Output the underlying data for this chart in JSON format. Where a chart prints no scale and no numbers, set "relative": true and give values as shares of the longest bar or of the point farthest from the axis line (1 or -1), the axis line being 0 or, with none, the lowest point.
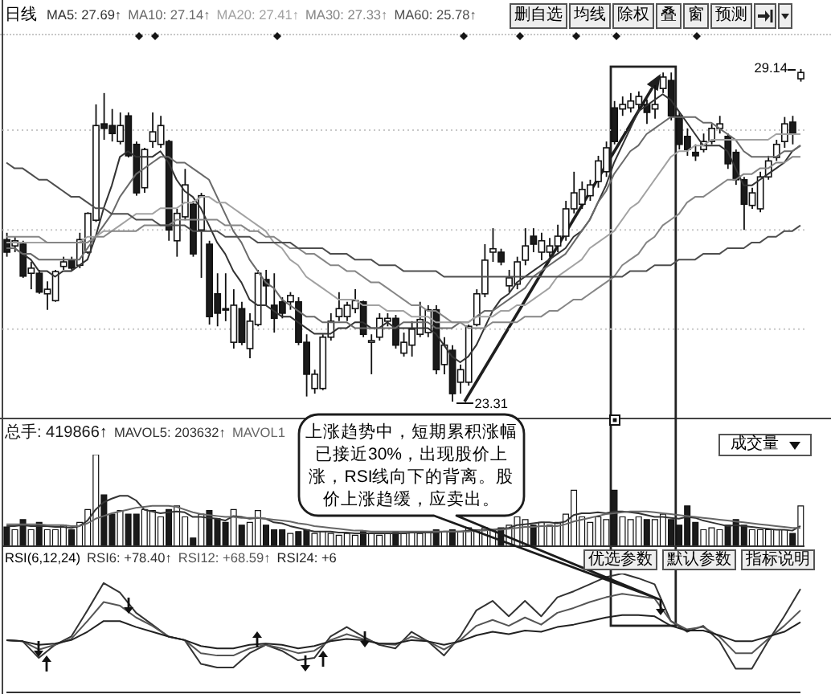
{
  "chart_data": [
    {
      "type": "candlestick",
      "title": "日线",
      "legend": "top left",
      "tick_labels": false,
      "grid": "y",
      "marker": "none",
      "line_style": "solid",
      "categories": [
        null,
        null,
        null,
        null,
        null,
        null,
        null,
        null,
        null,
        null,
        null,
        null,
        null,
        null,
        null,
        null,
        null,
        null,
        null,
        null,
        null,
        null,
        null,
        null,
        null,
        null,
        null,
        null,
        null,
        null,
        null,
        null,
        null,
        null,
        null,
        null,
        null,
        null,
        null,
        null,
        null,
        null,
        null,
        null,
        null,
        null,
        null,
        null,
        null,
        null,
        null,
        null,
        null,
        null,
        null,
        null,
        null,
        null,
        null,
        null,
        null,
        null,
        null,
        null,
        null,
        null,
        null,
        null,
        null,
        null,
        null,
        null,
        null,
        null,
        null,
        null,
        null,
        null,
        null,
        null,
        null,
        null,
        null,
        null,
        null,
        null,
        null,
        null,
        null,
        null,
        null,
        null,
        null,
        null,
        null,
        null,
        null,
        null,
        null
      ],
      "ohlc": [
        [
          26.15,
          26.27,
          25.85,
          25.93
        ],
        [
          26.04,
          26.21,
          25.93,
          26.13
        ],
        [
          26.07,
          26.13,
          25.48,
          25.51
        ],
        [
          25.56,
          25.76,
          25.28,
          25.65
        ],
        [
          25.56,
          25.62,
          25.2,
          25.23
        ],
        [
          25.2,
          25.42,
          24.92,
          25.28
        ],
        [
          25.08,
          25.62,
          25.06,
          25.59
        ],
        [
          25.68,
          25.85,
          25.62,
          25.76
        ],
        [
          25.79,
          25.85,
          25.62,
          25.65
        ],
        [
          25.7,
          26.27,
          25.65,
          26.15
        ],
        [
          25.93,
          26.63,
          25.9,
          26.61
        ],
        [
          26.49,
          28.52,
          26.46,
          28.15
        ],
        [
          28.18,
          28.72,
          27.9,
          28.1
        ],
        [
          28.15,
          28.44,
          27.87,
          28.01
        ],
        [
          27.87,
          28.38,
          27.82,
          28.15
        ],
        [
          28.32,
          28.38,
          27.59,
          27.62
        ],
        [
          27.82,
          27.87,
          26.92,
          26.97
        ],
        [
          27.06,
          27.76,
          26.97,
          27.73
        ],
        [
          27.87,
          28.38,
          27.76,
          28.04
        ],
        [
          27.82,
          28.32,
          27.76,
          28.15
        ],
        [
          27.87,
          27.9,
          26.13,
          26.32
        ],
        [
          26.13,
          26.69,
          25.85,
          26.61
        ],
        [
          26.55,
          27.39,
          26.49,
          27.11
        ],
        [
          26.77,
          26.83,
          25.85,
          25.9
        ],
        [
          26.32,
          26.97,
          25.48,
          26.92
        ],
        [
          26.07,
          26.13,
          24.66,
          24.8
        ],
        [
          25.2,
          25.56,
          24.63,
          24.86
        ],
        [
          24.94,
          25.56,
          24.72,
          24.92
        ],
        [
          24.35,
          25.28,
          24.24,
          25.0
        ],
        [
          24.94,
          25.06,
          24.3,
          24.35
        ],
        [
          24.24,
          24.86,
          24.07,
          24.72
        ],
        [
          24.66,
          25.62,
          24.63,
          25.56
        ],
        [
          25.45,
          25.62,
          25.0,
          25.34
        ],
        [
          25.0,
          25.56,
          24.52,
          24.77
        ],
        [
          25.06,
          25.14,
          24.77,
          24.86
        ],
        [
          25.06,
          25.23,
          24.92,
          25.17
        ],
        [
          25.06,
          25.14,
          24.3,
          24.35
        ],
        [
          24.35,
          24.49,
          23.4,
          23.79
        ],
        [
          23.54,
          23.87,
          23.45,
          23.79
        ],
        [
          23.54,
          24.49,
          23.51,
          24.44
        ],
        [
          24.44,
          24.86,
          24.38,
          24.72
        ],
        [
          24.8,
          25.23,
          24.72,
          24.94
        ],
        [
          24.8,
          25.06,
          24.72,
          25.0
        ],
        [
          24.94,
          25.28,
          24.86,
          25.08
        ],
        [
          25.06,
          25.08,
          24.44,
          24.49
        ],
        [
          24.35,
          24.49,
          23.79,
          24.38
        ],
        [
          24.44,
          24.86,
          24.38,
          24.77
        ],
        [
          24.72,
          24.86,
          24.63,
          24.77
        ],
        [
          24.77,
          24.83,
          24.24,
          24.3
        ],
        [
          24.16,
          24.52,
          24.1,
          24.35
        ],
        [
          24.3,
          24.72,
          24.1,
          24.58
        ],
        [
          24.49,
          25.06,
          24.44,
          24.75
        ],
        [
          24.52,
          25.0,
          24.44,
          24.92
        ],
        [
          24.92,
          25.0,
          23.79,
          23.87
        ],
        [
          23.96,
          24.44,
          23.79,
          24.3
        ],
        [
          24.21,
          24.3,
          23.31,
          23.45
        ],
        [
          23.65,
          23.96,
          23.45,
          23.87
        ],
        [
          23.65,
          24.66,
          23.59,
          24.63
        ],
        [
          24.66,
          25.28,
          24.63,
          25.2
        ],
        [
          25.2,
          26.07,
          25.14,
          25.79
        ],
        [
          25.93,
          26.35,
          25.76,
          25.99
        ],
        [
          25.93,
          25.99,
          25.7,
          25.76
        ],
        [
          25.34,
          25.62,
          25.23,
          25.48
        ],
        [
          25.37,
          25.85,
          25.28,
          25.76
        ],
        [
          25.79,
          26.35,
          25.7,
          26.04
        ],
        [
          26.21,
          26.35,
          25.93,
          26.07
        ],
        [
          25.93,
          26.27,
          25.79,
          26.13
        ],
        [
          25.93,
          26.18,
          25.85,
          26.04
        ],
        [
          26.04,
          26.41,
          25.93,
          26.21
        ],
        [
          26.21,
          26.83,
          26.13,
          26.69
        ],
        [
          26.69,
          27.34,
          26.61,
          26.97
        ],
        [
          26.77,
          27.17,
          26.69,
          27.03
        ],
        [
          26.92,
          27.2,
          26.83,
          27.11
        ],
        [
          27.17,
          27.62,
          27.06,
          27.53
        ],
        [
          27.34,
          27.87,
          27.25,
          27.76
        ],
        [
          28.46,
          28.58,
          27.82,
          27.87
        ],
        [
          28.44,
          28.66,
          28.32,
          28.52
        ],
        [
          28.46,
          28.72,
          28.38,
          28.58
        ],
        [
          28.52,
          28.75,
          28.44,
          28.66
        ],
        [
          28.52,
          28.61,
          28.18,
          28.38
        ],
        [
          28.44,
          28.86,
          28.27,
          28.52
        ],
        [
          28.8,
          29.08,
          28.72,
          29.0
        ],
        [
          28.94,
          29.08,
          28.24,
          28.32
        ],
        [
          28.32,
          28.38,
          27.73,
          27.82
        ],
        [
          27.96,
          28.1,
          27.62,
          27.73
        ],
        [
          27.68,
          27.82,
          27.53,
          27.62
        ],
        [
          27.73,
          28.01,
          27.68,
          27.87
        ],
        [
          27.87,
          28.18,
          27.82,
          28.1
        ],
        [
          28.1,
          28.32,
          28.01,
          28.18
        ],
        [
          27.96,
          28.01,
          27.39,
          27.48
        ],
        [
          27.68,
          27.73,
          27.11,
          27.2
        ],
        [
          27.2,
          27.25,
          26.32,
          26.77
        ],
        [
          26.75,
          27.06,
          26.69,
          26.97
        ],
        [
          26.69,
          27.34,
          26.63,
          27.25
        ],
        [
          27.25,
          27.62,
          27.2,
          27.53
        ],
        [
          27.59,
          27.9,
          27.53,
          27.82
        ],
        [
          27.87,
          28.3,
          27.76,
          28.18
        ],
        [
          28.21,
          28.32,
          27.82,
          28.01
        ],
        [
          28.97,
          29.14,
          28.92,
          29.08
        ]
      ],
      "colors": [
        "#1a1a1a",
        "#ffffff",
        "#1a1a1a",
        "#ffffff",
        "#1a1a1a",
        "#ffffff",
        "#ffffff",
        "#ffffff",
        "#1a1a1a",
        "#ffffff",
        "#ffffff",
        "#ffffff",
        "#1a1a1a",
        "#1a1a1a",
        "#ffffff",
        "#1a1a1a",
        "#1a1a1a",
        "#ffffff",
        "#ffffff",
        "#ffffff",
        "#1a1a1a",
        "#ffffff",
        "#ffffff",
        "#1a1a1a",
        "#ffffff",
        "#1a1a1a",
        "#1a1a1a",
        "#1a1a1a",
        "#ffffff",
        "#1a1a1a",
        "#ffffff",
        "#ffffff",
        "#1a1a1a",
        "#1a1a1a",
        "#1a1a1a",
        "#ffffff",
        "#1a1a1a",
        "#1a1a1a",
        "#ffffff",
        "#ffffff",
        "#ffffff",
        "#ffffff",
        "#ffffff",
        "#ffffff",
        "#1a1a1a",
        "#ffffff",
        "#ffffff",
        "#ffffff",
        "#1a1a1a",
        "#ffffff",
        "#ffffff",
        "#ffffff",
        "#ffffff",
        "#1a1a1a",
        "#ffffff",
        "#1a1a1a",
        "#ffffff",
        "#ffffff",
        "#ffffff",
        "#ffffff",
        "#ffffff",
        "#1a1a1a",
        "#ffffff",
        "#ffffff",
        "#ffffff",
        "#1a1a1a",
        "#ffffff",
        "#ffffff",
        "#ffffff",
        "#ffffff",
        "#ffffff",
        "#ffffff",
        "#ffffff",
        "#ffffff",
        "#ffffff",
        "#1a1a1a",
        "#ffffff",
        "#ffffff",
        "#ffffff",
        "#1a1a1a",
        "#ffffff",
        "#ffffff",
        "#1a1a1a",
        "#1a1a1a",
        "#1a1a1a",
        "#1a1a1a",
        "#ffffff",
        "#ffffff",
        "#ffffff",
        "#1a1a1a",
        "#1a1a1a",
        "#1a1a1a",
        "#ffffff",
        "#ffffff",
        "#ffffff",
        "#ffffff",
        "#ffffff",
        "#1a1a1a",
        "#ffffff"
      ],
      "series": [
        {
          "type": "line",
          "name": "MA5: 27.69↑",
          "color": "#333333",
          "values": [
            26.0,
            26.0,
            25.9,
            25.8,
            25.6,
            25.6,
            25.5,
            25.6,
            25.6,
            25.7,
            25.8,
            26.2,
            26.7,
            27.1,
            27.6,
            27.7,
            27.6,
            27.6,
            27.6,
            27.7,
            27.5,
            27.2,
            27.0,
            26.9,
            26.7,
            26.4,
            26.1,
            25.9,
            25.6,
            25.4,
            25.1,
            25.0,
            25.0,
            24.9,
            24.8,
            24.8,
            24.7,
            24.6,
            24.5,
            24.5,
            24.5,
            24.6,
            24.6,
            24.7,
            24.7,
            24.6,
            24.6,
            24.7,
            24.6,
            24.6,
            24.6,
            24.6,
            24.6,
            24.5,
            24.3,
            24.1,
            24.0,
            24.1,
            24.3,
            24.6,
            24.9,
            25.1,
            25.2,
            25.4,
            25.5,
            25.6,
            25.7,
            25.8,
            25.9,
            26.0,
            26.2,
            26.3,
            26.5,
            26.8,
            27.1,
            27.5,
            27.8,
            28.1,
            28.4,
            28.5,
            28.6,
            28.7,
            28.6,
            28.4,
            28.2,
            28.0,
            27.8,
            27.8,
            27.8,
            27.7,
            27.4,
            27.1,
            27.1,
            27.2,
            27.3,
            27.4,
            27.5,
            27.7,
            27.8
          ]
        },
        {
          "type": "line",
          "name": "MA10: 27.14↑",
          "color": "#6a6a6a",
          "values": [
            26.0,
            26.0,
            25.9,
            25.9,
            25.8,
            25.8,
            25.8,
            25.8,
            25.8,
            25.8,
            26.0,
            26.2,
            26.4,
            26.6,
            26.9,
            27.1,
            27.3,
            27.4,
            27.5,
            27.6,
            27.6,
            27.5,
            27.5,
            27.4,
            27.3,
            27.2,
            26.9,
            26.6,
            26.3,
            26.1,
            25.8,
            25.6,
            25.4,
            25.3,
            25.1,
            25.0,
            24.9,
            24.8,
            24.8,
            24.7,
            24.7,
            24.7,
            24.7,
            24.6,
            24.6,
            24.6,
            24.6,
            24.6,
            24.6,
            24.7,
            24.7,
            24.7,
            24.7,
            24.6,
            24.6,
            24.6,
            24.7,
            24.7,
            24.8,
            24.9,
            24.9,
            25.0,
            25.1,
            25.2,
            25.3,
            25.5,
            25.6,
            25.7,
            25.8,
            25.9,
            26.1,
            26.3,
            26.5,
            26.8,
            27.0,
            27.3,
            27.5,
            27.7,
            27.8,
            28.0,
            28.1,
            28.2,
            28.3,
            28.3,
            28.3,
            28.3,
            28.2,
            28.2,
            28.1,
            28.0,
            27.9,
            27.7,
            27.6,
            27.6,
            27.6,
            27.6,
            27.7,
            27.7,
            27.8
          ]
        },
        {
          "type": "line",
          "name": "MA20: 27.41↑",
          "color": "#a2a2a2",
          "values": [
            26.1,
            26.1,
            26.1,
            26.1,
            26.1,
            26.1,
            26.1,
            26.1,
            26.1,
            26.1,
            26.2,
            26.2,
            26.3,
            26.3,
            26.4,
            26.5,
            26.6,
            26.6,
            26.6,
            26.7,
            26.7,
            26.7,
            26.8,
            26.8,
            26.9,
            26.9,
            26.8,
            26.8,
            26.7,
            26.6,
            26.5,
            26.4,
            26.3,
            26.1,
            26.0,
            25.8,
            25.7,
            25.5,
            25.4,
            25.3,
            25.2,
            25.1,
            25.1,
            25.1,
            25.0,
            25.0,
            25.0,
            24.9,
            24.9,
            24.9,
            24.8,
            24.8,
            24.8,
            24.7,
            24.7,
            24.7,
            24.7,
            24.7,
            24.8,
            24.8,
            24.8,
            24.9,
            24.9,
            25.0,
            25.0,
            25.1,
            25.2,
            25.3,
            25.5,
            25.6,
            25.7,
            25.8,
            26.0,
            26.1,
            26.2,
            26.3,
            26.5,
            26.7,
            26.8,
            27.0,
            27.2,
            27.4,
            27.6,
            27.7,
            27.7,
            27.8,
            27.8,
            27.9,
            27.9,
            27.9,
            27.9,
            27.9,
            27.9,
            27.9,
            27.9,
            28.0,
            28.0,
            28.0,
            28.0
          ]
        },
        {
          "type": "line",
          "name": "MA30: 27.33↑",
          "color": "#868686",
          "values": [
            26.2,
            26.2,
            26.2,
            26.2,
            26.2,
            26.1,
            26.1,
            26.1,
            26.1,
            26.1,
            26.1,
            26.2,
            26.2,
            26.3,
            26.3,
            26.3,
            26.3,
            26.4,
            26.4,
            26.4,
            26.4,
            26.5,
            26.5,
            26.5,
            26.5,
            26.5,
            26.5,
            26.4,
            26.4,
            26.4,
            26.3,
            26.3,
            26.2,
            26.2,
            26.1,
            26.0,
            26.0,
            25.9,
            25.9,
            25.8,
            25.7,
            25.7,
            25.6,
            25.6,
            25.5,
            25.4,
            25.4,
            25.3,
            25.2,
            25.1,
            25.0,
            25.0,
            24.9,
            24.9,
            24.8,
            24.7,
            24.7,
            24.6,
            24.6,
            24.6,
            24.7,
            24.7,
            24.7,
            24.7,
            24.8,
            24.8,
            24.8,
            24.9,
            24.9,
            25.0,
            25.1,
            25.1,
            25.2,
            25.3,
            25.4,
            25.5,
            25.7,
            25.8,
            25.9,
            26.1,
            26.2,
            26.4,
            26.5,
            26.6,
            26.8,
            26.9,
            26.9,
            27.0,
            27.1,
            27.2,
            27.2,
            27.3,
            27.3,
            27.4,
            27.4,
            27.5,
            27.5,
            27.6,
            27.6
          ]
        },
        {
          "type": "line",
          "name": "MA60: 25.78↑",
          "color": "#4e4e4e",
          "values": [
            27.5,
            27.4,
            27.4,
            27.3,
            27.2,
            27.2,
            27.1,
            27.0,
            26.9,
            26.9,
            26.8,
            26.7,
            26.7,
            26.6,
            26.6,
            26.6,
            26.5,
            26.5,
            26.5,
            26.4,
            26.4,
            26.4,
            26.4,
            26.3,
            26.3,
            26.3,
            26.3,
            26.2,
            26.2,
            26.2,
            26.2,
            26.1,
            26.1,
            26.1,
            26.1,
            26.1,
            26.0,
            26.0,
            26.0,
            26.0,
            25.9,
            25.9,
            25.9,
            25.8,
            25.8,
            25.8,
            25.7,
            25.7,
            25.7,
            25.6,
            25.6,
            25.6,
            25.6,
            25.6,
            25.5,
            25.5,
            25.5,
            25.5,
            25.5,
            25.5,
            25.5,
            25.5,
            25.5,
            25.5,
            25.5,
            25.5,
            25.5,
            25.5,
            25.5,
            25.5,
            25.5,
            25.5,
            25.5,
            25.5,
            25.5,
            25.5,
            25.5,
            25.6,
            25.6,
            25.6,
            25.7,
            25.7,
            25.7,
            25.8,
            25.8,
            25.8,
            25.9,
            25.9,
            25.9,
            26.0,
            26.0,
            26.0,
            26.1,
            26.1,
            26.2,
            26.2,
            26.3,
            26.3,
            26.4
          ]
        }
      ],
      "yticks": [
        {
          "value": 28.07,
          "label": null
        },
        {
          "value": 26.32,
          "label": null
        },
        {
          "value": 24.58,
          "label": null
        }
      ],
      "annotations": [
        "29.14",
        "23.31",
        "删自选",
        "均线",
        "除权",
        "叠",
        "窗",
        "预测"
      ]
    },
    {
      "type": "bar",
      "relative": true,
      "legend": "top left",
      "tick_labels": false,
      "marker": "none",
      "line_style": "solid",
      "categories": [
        null,
        null,
        null,
        null,
        null,
        null,
        null,
        null,
        null,
        null,
        null,
        null,
        null,
        null,
        null,
        null,
        null,
        null,
        null,
        null,
        null,
        null,
        null,
        null,
        null,
        null,
        null,
        null,
        null,
        null,
        null,
        null,
        null,
        null,
        null,
        null,
        null,
        null,
        null,
        null,
        null,
        null,
        null,
        null,
        null,
        null,
        null,
        null,
        null,
        null,
        null,
        null,
        null,
        null,
        null,
        null,
        null,
        null,
        null,
        null,
        null,
        null,
        null,
        null,
        null,
        null,
        null,
        null,
        null,
        null,
        null,
        null,
        null,
        null,
        null,
        null,
        null,
        null,
        null,
        null,
        null,
        null,
        null,
        null,
        null,
        null,
        null,
        null,
        null,
        null,
        null,
        null,
        null,
        null,
        null,
        null,
        null,
        null,
        null
      ],
      "series": [
        {
          "name": "总手: 419866↑",
          "color": "#1a1a1a",
          "values": [
            0.21,
            0.18,
            0.29,
            0.18,
            0.26,
            0.18,
            0.18,
            0.23,
            0.18,
            0.26,
            0.4,
            1,
            0.56,
            0.35,
            0.39,
            0.35,
            0.35,
            0.4,
            0.39,
            0.32,
            0.4,
            0.44,
            0.32,
            0.09,
            0.35,
            0.39,
            0.3,
            0.26,
            0.4,
            0.23,
            0.26,
            0.39,
            0.23,
            0.18,
            0.18,
            0.14,
            0.16,
            0.18,
            0.14,
            0.16,
            0.14,
            0.12,
            0.14,
            0.12,
            0.16,
            0.14,
            0.12,
            0.14,
            0.16,
            0.14,
            0.16,
            0.14,
            0.16,
            0.18,
            0.16,
            0.18,
            0.16,
            0.2,
            0.18,
            0.2,
            0.18,
            0.2,
            0.23,
            0.32,
            0.29,
            0.23,
            0.26,
            0.23,
            0.26,
            0.35,
            0.61,
            0.32,
            0.26,
            0.32,
            0.29,
            0.61,
            0.32,
            0.29,
            0.32,
            0.29,
            0.29,
            0.35,
            0.29,
            0.23,
            0.44,
            0.26,
            0.18,
            0.2,
            0.18,
            0.23,
            0.29,
            0.23,
            0.18,
            0.18,
            0.18,
            0.18,
            0.18,
            0.14,
            0.44
          ],
          "colors": [
            "#1a1a1a",
            "#ffffff",
            "#1a1a1a",
            "#ffffff",
            "#1a1a1a",
            "#ffffff",
            "#ffffff",
            "#ffffff",
            "#1a1a1a",
            "#ffffff",
            "#ffffff",
            "#ffffff",
            "#1a1a1a",
            "#1a1a1a",
            "#ffffff",
            "#1a1a1a",
            "#1a1a1a",
            "#ffffff",
            "#ffffff",
            "#ffffff",
            "#1a1a1a",
            "#ffffff",
            "#ffffff",
            "#1a1a1a",
            "#ffffff",
            "#1a1a1a",
            "#1a1a1a",
            "#1a1a1a",
            "#ffffff",
            "#1a1a1a",
            "#ffffff",
            "#ffffff",
            "#1a1a1a",
            "#1a1a1a",
            "#1a1a1a",
            "#ffffff",
            "#1a1a1a",
            "#1a1a1a",
            "#ffffff",
            "#ffffff",
            "#ffffff",
            "#ffffff",
            "#ffffff",
            "#ffffff",
            "#1a1a1a",
            "#ffffff",
            "#ffffff",
            "#ffffff",
            "#1a1a1a",
            "#ffffff",
            "#ffffff",
            "#ffffff",
            "#ffffff",
            "#1a1a1a",
            "#ffffff",
            "#1a1a1a",
            "#ffffff",
            "#ffffff",
            "#ffffff",
            "#ffffff",
            "#ffffff",
            "#1a1a1a",
            "#ffffff",
            "#ffffff",
            "#ffffff",
            "#1a1a1a",
            "#ffffff",
            "#ffffff",
            "#ffffff",
            "#ffffff",
            "#ffffff",
            "#ffffff",
            "#ffffff",
            "#ffffff",
            "#ffffff",
            "#1a1a1a",
            "#ffffff",
            "#ffffff",
            "#ffffff",
            "#1a1a1a",
            "#ffffff",
            "#ffffff",
            "#1a1a1a",
            "#1a1a1a",
            "#1a1a1a",
            "#1a1a1a",
            "#ffffff",
            "#ffffff",
            "#ffffff",
            "#1a1a1a",
            "#1a1a1a",
            "#1a1a1a",
            "#ffffff",
            "#ffffff",
            "#ffffff",
            "#ffffff",
            "#ffffff",
            "#1a1a1a",
            "#ffffff"
          ]
        },
        {
          "type": "line",
          "name": "MAVOL5: 203632↑",
          "color": "#333333",
          "values": [
            0.22,
            0.22,
            0.23,
            0.22,
            0.22,
            0.22,
            0.21,
            0.21,
            0.2,
            0.22,
            0.28,
            0.4,
            0.48,
            0.52,
            0.55,
            0.55,
            0.5,
            0.4,
            0.38,
            0.36,
            0.37,
            0.38,
            0.37,
            0.32,
            0.32,
            0.31,
            0.3,
            0.28,
            0.33,
            0.32,
            0.3,
            0.31,
            0.3,
            0.26,
            0.25,
            0.22,
            0.2,
            0.18,
            0.16,
            0.16,
            0.16,
            0.15,
            0.15,
            0.14,
            0.14,
            0.14,
            0.14,
            0.14,
            0.14,
            0.14,
            0.15,
            0.15,
            0.15,
            0.15,
            0.16,
            0.16,
            0.16,
            0.17,
            0.17,
            0.18,
            0.18,
            0.19,
            0.2,
            0.23,
            0.24,
            0.25,
            0.26,
            0.26,
            0.25,
            0.27,
            0.34,
            0.36,
            0.36,
            0.37,
            0.36,
            0.38,
            0.38,
            0.37,
            0.36,
            0.34,
            0.32,
            0.32,
            0.31,
            0.3,
            0.32,
            0.31,
            0.28,
            0.26,
            0.24,
            0.22,
            0.23,
            0.22,
            0.21,
            0.2,
            0.19,
            0.18,
            0.18,
            0.17,
            0.22
          ]
        },
        {
          "type": "line",
          "name": "MAVOL1",
          "color": "#666666",
          "values": [
            0.24,
            0.24,
            0.24,
            0.24,
            0.24,
            0.23,
            0.23,
            0.23,
            0.22,
            0.22,
            0.25,
            0.3,
            0.33,
            0.36,
            0.38,
            0.4,
            0.42,
            0.43,
            0.44,
            0.44,
            0.44,
            0.43,
            0.4,
            0.37,
            0.35,
            0.34,
            0.33,
            0.32,
            0.32,
            0.31,
            0.31,
            0.31,
            0.3,
            0.29,
            0.28,
            0.27,
            0.25,
            0.24,
            0.22,
            0.21,
            0.2,
            0.19,
            0.18,
            0.17,
            0.17,
            0.16,
            0.16,
            0.16,
            0.16,
            0.16,
            0.16,
            0.16,
            0.16,
            0.16,
            0.16,
            0.16,
            0.16,
            0.16,
            0.17,
            0.17,
            0.18,
            0.18,
            0.19,
            0.2,
            0.21,
            0.21,
            0.22,
            0.22,
            0.22,
            0.24,
            0.27,
            0.29,
            0.31,
            0.33,
            0.35,
            0.36,
            0.37,
            0.38,
            0.38,
            0.38,
            0.37,
            0.36,
            0.35,
            0.34,
            0.33,
            0.32,
            0.31,
            0.3,
            0.29,
            0.28,
            0.27,
            0.26,
            0.25,
            0.24,
            0.23,
            0.22,
            0.21,
            0.2,
            0.2
          ]
        }
      ],
      "annotations": [
        "成交量",
        "上涨趋势中，短期累积涨幅已接近30%，出现股价上涨，RSI线向下的背离。股价上涨趋缓，应卖出。"
      ]
    },
    {
      "type": "line",
      "relative": true,
      "legend": "top left",
      "legend_title": "RSI(6,12,24)",
      "tick_labels": false,
      "marker": "none",
      "line_style": "solid",
      "categories": [
        null,
        null,
        null,
        null,
        null,
        null,
        null,
        null,
        null,
        null,
        null,
        null,
        null,
        null,
        null,
        null,
        null,
        null,
        null,
        null,
        null,
        null,
        null,
        null,
        null,
        null,
        null,
        null,
        null,
        null,
        null,
        null,
        null,
        null,
        null,
        null,
        null,
        null,
        null,
        null,
        null,
        null,
        null,
        null,
        null,
        null,
        null,
        null,
        null,
        null
      ],
      "series": [
        {
          "name": "RSI6: +78.40↑",
          "color": "#333333",
          "values": [
            0.44,
            0.43,
            0.29,
            0.4,
            0.47,
            0.69,
            0.92,
            0.84,
            0.67,
            0.57,
            0.47,
            0.44,
            0.24,
            0.21,
            0.21,
            0.33,
            0.4,
            0.35,
            0.27,
            0.29,
            0.47,
            0.55,
            0.47,
            0.4,
            0.37,
            0.51,
            0.43,
            0.31,
            0.47,
            0.69,
            0.77,
            0.64,
            0.77,
            0.64,
            0.8,
            0.85,
            0.91,
            0.97,
            1,
            0.96,
            0.91,
            0.6,
            0.51,
            0.56,
            0.43,
            0.2,
            0.2,
            0.43,
            0.64,
            0.87
          ]
        },
        {
          "name": "RSI12: +68.59↑",
          "color": "#555555",
          "values": [
            0.44,
            0.43,
            0.36,
            0.4,
            0.45,
            0.6,
            0.76,
            0.73,
            0.63,
            0.56,
            0.47,
            0.44,
            0.33,
            0.31,
            0.31,
            0.37,
            0.4,
            0.37,
            0.33,
            0.35,
            0.44,
            0.49,
            0.45,
            0.41,
            0.4,
            0.47,
            0.43,
            0.36,
            0.44,
            0.56,
            0.61,
            0.56,
            0.63,
            0.57,
            0.67,
            0.71,
            0.76,
            0.8,
            0.83,
            0.81,
            0.79,
            0.6,
            0.53,
            0.55,
            0.47,
            0.33,
            0.33,
            0.45,
            0.56,
            0.69
          ]
        },
        {
          "name": "RSI24: +6",
          "color": "#222222",
          "values": [
            0.44,
            0.43,
            0.4,
            0.41,
            0.44,
            0.51,
            0.6,
            0.6,
            0.55,
            0.51,
            0.47,
            0.44,
            0.39,
            0.37,
            0.37,
            0.4,
            0.41,
            0.4,
            0.37,
            0.39,
            0.43,
            0.45,
            0.44,
            0.41,
            0.41,
            0.44,
            0.43,
            0.4,
            0.43,
            0.48,
            0.51,
            0.49,
            0.52,
            0.51,
            0.55,
            0.57,
            0.6,
            0.63,
            0.65,
            0.65,
            0.64,
            0.56,
            0.52,
            0.52,
            0.48,
            0.43,
            0.43,
            0.47,
            0.51,
            0.59
          ]
        }
      ],
      "annotations": [
        "优选参数",
        "默认参数",
        "指标说明"
      ]
    }
  ]
}
